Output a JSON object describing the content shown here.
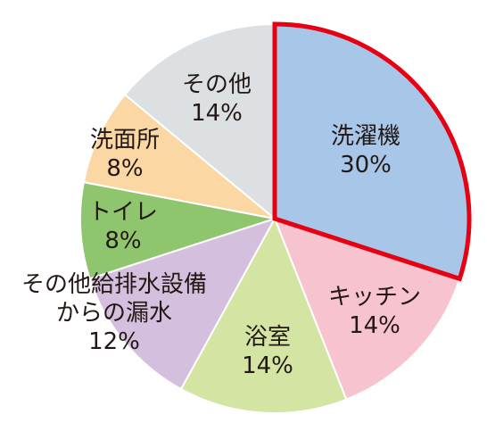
{
  "chart_data": {
    "type": "pie",
    "title": "",
    "start_angle_deg": 0,
    "direction": "clockwise",
    "slices": [
      {
        "label": "洗濯機",
        "value": 30,
        "value_text": "30%",
        "color": "#a7c6e8",
        "highlighted": true
      },
      {
        "label": "キッチン",
        "value": 14,
        "value_text": "14%",
        "color": "#f7c3cf"
      },
      {
        "label": "浴室",
        "value": 14,
        "value_text": "14%",
        "color": "#d3e4a3"
      },
      {
        "label": "その他給排水設備からの漏水",
        "label_lines": [
          "その他給排水設備",
          "からの漏水"
        ],
        "value": 12,
        "value_text": "12%",
        "color": "#d5bfde"
      },
      {
        "label": "トイレ",
        "value": 8,
        "value_text": "8%",
        "color": "#8fc66d"
      },
      {
        "label": "洗面所",
        "value": 8,
        "value_text": "8%",
        "color": "#fbd7a3"
      },
      {
        "label": "その他",
        "value": 14,
        "value_text": "14%",
        "color": "#dde0e3"
      }
    ],
    "highlight_color": "#e60012"
  }
}
